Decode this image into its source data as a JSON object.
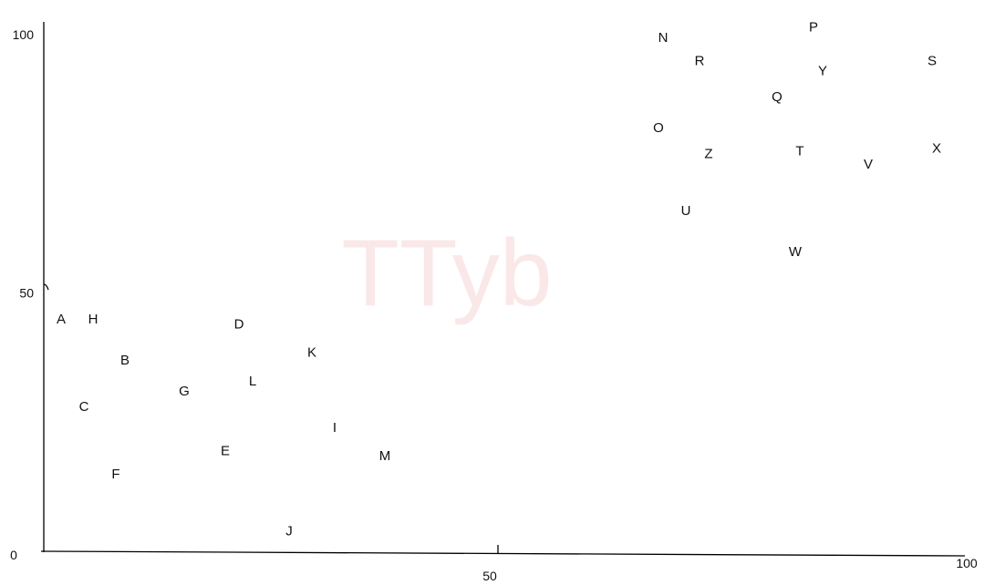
{
  "chart_data": {
    "type": "scatter",
    "title": "",
    "xlabel": "",
    "ylabel": "",
    "xlim": [
      0,
      100
    ],
    "ylim": [
      0,
      100
    ],
    "grid": false,
    "legend": "none",
    "ticks": {
      "x": [
        {
          "value": 0,
          "label": "0"
        },
        {
          "value": 50,
          "label": "50"
        },
        {
          "value": 100,
          "label": "100"
        }
      ],
      "y": [
        {
          "value": 50,
          "label": "50"
        },
        {
          "value": 100,
          "label": "100"
        }
      ]
    },
    "points": [
      {
        "label": "A",
        "x": 2,
        "y": 45
      },
      {
        "label": "H",
        "x": 5.5,
        "y": 45
      },
      {
        "label": "B",
        "x": 9,
        "y": 37
      },
      {
        "label": "C",
        "x": 4.5,
        "y": 28
      },
      {
        "label": "F",
        "x": 8,
        "y": 15
      },
      {
        "label": "G",
        "x": 15.5,
        "y": 31
      },
      {
        "label": "D",
        "x": 21.5,
        "y": 44
      },
      {
        "label": "E",
        "x": 20,
        "y": 19.5
      },
      {
        "label": "L",
        "x": 23,
        "y": 33
      },
      {
        "label": "K",
        "x": 29.5,
        "y": 38.5
      },
      {
        "label": "I",
        "x": 32,
        "y": 24
      },
      {
        "label": "M",
        "x": 37.5,
        "y": 18.5
      },
      {
        "label": "J",
        "x": 27,
        "y": 4
      },
      {
        "label": "N",
        "x": 68,
        "y": 99.5
      },
      {
        "label": "R",
        "x": 72,
        "y": 95
      },
      {
        "label": "P",
        "x": 84.5,
        "y": 101.5
      },
      {
        "label": "Y",
        "x": 85.5,
        "y": 93
      },
      {
        "label": "S",
        "x": 97.5,
        "y": 95
      },
      {
        "label": "Q",
        "x": 80.5,
        "y": 88
      },
      {
        "label": "O",
        "x": 67.5,
        "y": 82
      },
      {
        "label": "Z",
        "x": 73,
        "y": 77
      },
      {
        "label": "T",
        "x": 83,
        "y": 77.5
      },
      {
        "label": "V",
        "x": 90.5,
        "y": 75
      },
      {
        "label": "X",
        "x": 98,
        "y": 78
      },
      {
        "label": "U",
        "x": 70.5,
        "y": 66
      },
      {
        "label": "W",
        "x": 82.5,
        "y": 58
      }
    ]
  },
  "watermark": {
    "text": "TTyb",
    "color": "#f8d9d9"
  }
}
